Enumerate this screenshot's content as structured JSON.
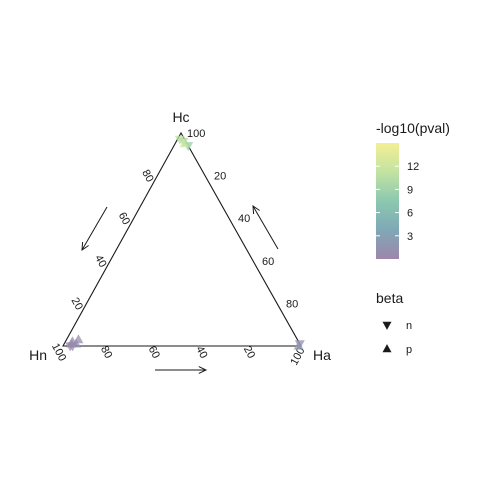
{
  "chart_data": {
    "type": "ternary-scatter",
    "vertices": {
      "top": "Hc",
      "left": "Hn",
      "right": "Ha"
    },
    "ticks": {
      "Hc": [
        "20",
        "40",
        "60",
        "80",
        "100"
      ],
      "Hn": [
        "20",
        "40",
        "60",
        "80",
        "100"
      ],
      "Ha": [
        "20",
        "40",
        "60",
        "80",
        "100"
      ]
    },
    "colorbar": {
      "title": "-log10(pval)",
      "min": 0,
      "max": 15,
      "ticks": [
        "3",
        "6",
        "9",
        "12"
      ],
      "tick_values": [
        3,
        6,
        9,
        12
      ],
      "colors": [
        "#9e86ab",
        "#7fa8b6",
        "#8cc8b0",
        "#c2e3a1",
        "#f4ef94"
      ]
    },
    "shape_legend": {
      "title": "beta",
      "items": [
        {
          "label": "n",
          "shape": "down-triangle"
        },
        {
          "label": "p",
          "shape": "up-triangle"
        }
      ]
    },
    "points": [
      {
        "Hn": 2,
        "Hc": 97,
        "Ha": 1,
        "beta": "n",
        "value": 11
      },
      {
        "Hn": 1,
        "Hc": 96,
        "Ha": 3,
        "beta": "n",
        "value": 10
      },
      {
        "Hn": 0,
        "Hc": 94,
        "Ha": 6,
        "beta": "n",
        "value": 8
      },
      {
        "Hn": 1,
        "Hc": 95,
        "Ha": 4,
        "beta": "p",
        "value": 12
      },
      {
        "Hn": 0,
        "Hc": 1,
        "Ha": 99,
        "beta": "n",
        "value": 1
      },
      {
        "Hn": 1,
        "Hc": 0,
        "Ha": 99,
        "beta": "p",
        "value": 2
      },
      {
        "Hn": 96,
        "Hc": 1,
        "Ha": 3,
        "beta": "p",
        "value": 1
      },
      {
        "Hn": 95,
        "Hc": 2,
        "Ha": 3,
        "beta": "p",
        "value": 0.5
      },
      {
        "Hn": 92,
        "Hc": 3,
        "Ha": 5,
        "beta": "p",
        "value": 0.5
      },
      {
        "Hn": 94,
        "Hc": 1,
        "Ha": 5,
        "beta": "p",
        "value": 1.5
      },
      {
        "Hn": 97,
        "Hc": 0,
        "Ha": 3,
        "beta": "n",
        "value": 0.5
      },
      {
        "Hn": 96,
        "Hc": 0,
        "Ha": 4,
        "beta": "n",
        "value": 0.5
      }
    ]
  }
}
